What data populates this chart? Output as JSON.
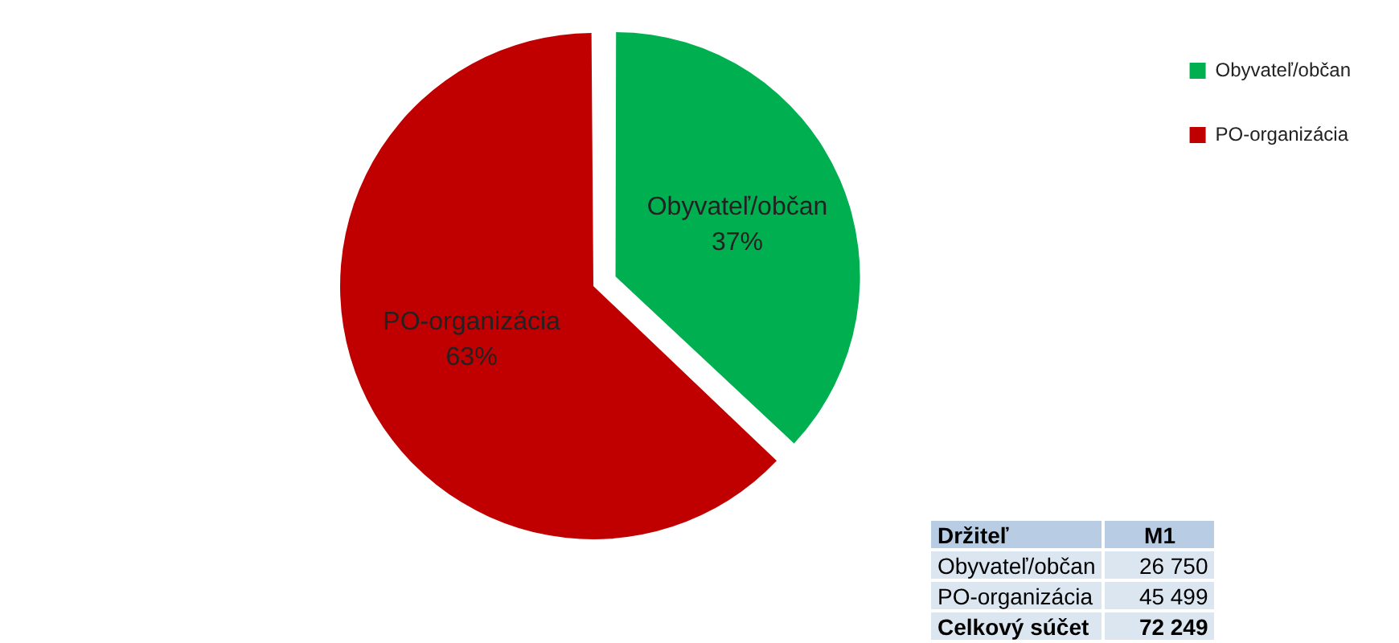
{
  "chart_data": {
    "type": "pie",
    "categories": [
      "Obyvateľ/občan",
      "PO-organizácia"
    ],
    "values": [
      37,
      63
    ],
    "colors": [
      "#00b050",
      "#c00000"
    ],
    "value_labels": [
      "37%",
      "63%"
    ],
    "legend": "top right",
    "annotations": [
      "Držiteľ",
      "M1",
      "26 750",
      "45 499",
      "Celkový súčet",
      "72 249"
    ]
  }
}
